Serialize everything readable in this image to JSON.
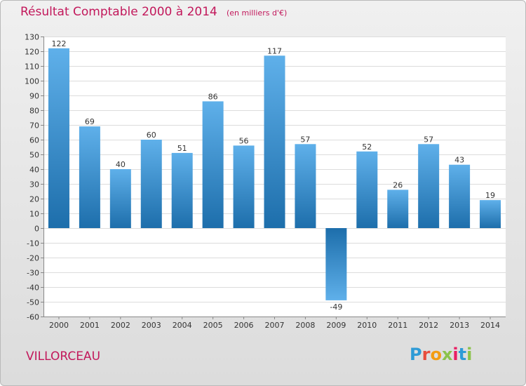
{
  "header": {
    "title": "Résultat Comptable 2000 à 2014",
    "subtitle": "(en milliers d'€)"
  },
  "footer": {
    "commune": "VILLORCEAU",
    "logo_letters": [
      "P",
      "r",
      "o",
      "x",
      "i",
      "t",
      "i"
    ]
  },
  "colors": {
    "title": "#c2185b",
    "bar_top": "#5fb0ea",
    "bar_bottom": "#1d6eab",
    "logo": [
      "#2e9bd6",
      "#e74c3c",
      "#f39c12",
      "#8bc34a",
      "#e91e63",
      "#2e9bd6",
      "#8bc34a"
    ]
  },
  "chart_data": {
    "type": "bar",
    "title": "Résultat Comptable 2000 à 2014",
    "subtitle": "(en milliers d'€)",
    "xlabel": "",
    "ylabel": "",
    "categories": [
      "2000",
      "2001",
      "2002",
      "2003",
      "2004",
      "2005",
      "2006",
      "2007",
      "2008",
      "2009",
      "2010",
      "2011",
      "2012",
      "2013",
      "2014"
    ],
    "values": [
      122,
      69,
      40,
      60,
      51,
      86,
      56,
      117,
      57,
      -49,
      52,
      26,
      57,
      43,
      19
    ],
    "ylim": [
      -60,
      130
    ],
    "ytick_step": 10,
    "grid": true,
    "legend": "none"
  }
}
